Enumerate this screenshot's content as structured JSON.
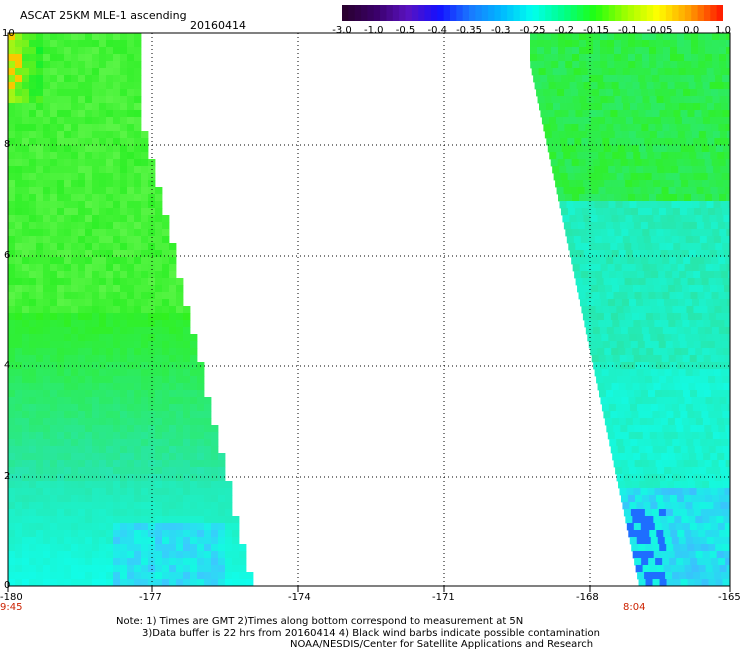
{
  "header": {
    "title": "ASCAT 25KM MLE-1 ascending",
    "date": "20160414"
  },
  "colorbar": {
    "labels": [
      "-3.0",
      "-1.0",
      "-0.5",
      "-0.4",
      "-0.35",
      "-0.3",
      "-0.25",
      "-0.2",
      "-0.15",
      "-0.1",
      "-0.05",
      "0.0",
      "1.0"
    ],
    "colors": [
      "#2a0030",
      "#3a006a",
      "#5a12c0",
      "#1410ff",
      "#1a78ff",
      "#00b8ff",
      "#00ffee",
      "#00ff88",
      "#20ff10",
      "#a0ff00",
      "#ffff00",
      "#ffa000",
      "#ff2000"
    ]
  },
  "map": {
    "x_ticks": [
      "-180",
      "-177",
      "-174",
      "-171",
      "-168",
      "-165"
    ],
    "y_ticks": [
      "0",
      "2",
      "4",
      "6",
      "8",
      "10"
    ],
    "time_left": "9:45",
    "time_right": "8:04"
  },
  "footer": {
    "line1": "Note: 1) Times are GMT 2)Times along bottom correspond to measurement at 5N",
    "line2": "3)Data buffer is 22 hrs from 20160414 4) Black wind barbs indicate possible contamination",
    "line3": "NOAA/NESDIS/Center for Satellite Applications and Research"
  }
}
